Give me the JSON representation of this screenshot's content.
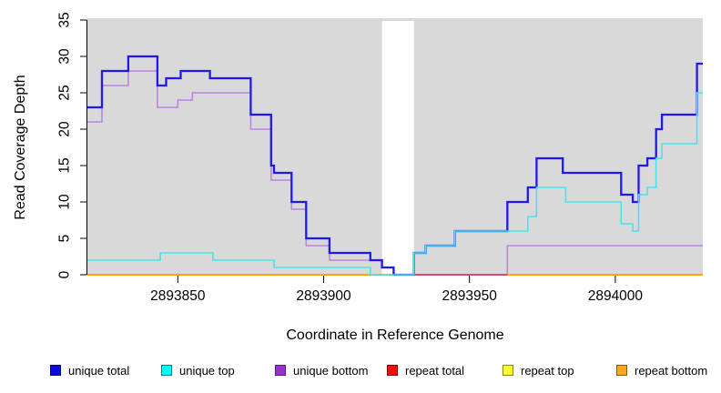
{
  "chart_data": {
    "type": "line",
    "step": true,
    "title": "",
    "xlabel": "Coordinate in Reference Genome",
    "ylabel": "Read Coverage Depth",
    "xlim": [
      2893819,
      2894030
    ],
    "ylim": [
      0,
      35
    ],
    "grid": false,
    "plot_bg": "#d9d9d9",
    "axis_color": "#000000",
    "x_ticks": [
      {
        "value": 2893850,
        "label": "2893850"
      },
      {
        "value": 2893900,
        "label": "2893900"
      },
      {
        "value": 2893950,
        "label": "2893950"
      },
      {
        "value": 2894000,
        "label": "2894000"
      }
    ],
    "y_ticks": [
      {
        "value": 0,
        "label": "0"
      },
      {
        "value": 5,
        "label": "5"
      },
      {
        "value": 10,
        "label": "10"
      },
      {
        "value": 15,
        "label": "15"
      },
      {
        "value": 20,
        "label": "20"
      },
      {
        "value": 25,
        "label": "25"
      },
      {
        "value": 30,
        "label": "30"
      },
      {
        "value": 35,
        "label": "35"
      }
    ],
    "gap_band": {
      "x1": 2893920,
      "x2": 2893931,
      "color": "#ffffff"
    },
    "series": [
      {
        "name": "unique total",
        "color": "#1f1ae8",
        "width": 2.3,
        "points": [
          [
            2893819,
            23
          ],
          [
            2893824,
            28
          ],
          [
            2893833,
            30
          ],
          [
            2893843,
            26
          ],
          [
            2893846,
            27
          ],
          [
            2893851,
            28
          ],
          [
            2893861,
            27
          ],
          [
            2893875,
            22
          ],
          [
            2893882,
            15
          ],
          [
            2893883,
            14
          ],
          [
            2893889,
            10
          ],
          [
            2893894,
            5
          ],
          [
            2893902,
            3
          ],
          [
            2893916,
            2
          ],
          [
            2893920,
            1
          ],
          [
            2893924,
            0
          ],
          [
            2893931,
            3
          ],
          [
            2893935,
            4
          ],
          [
            2893945,
            6
          ],
          [
            2893963,
            10
          ],
          [
            2893970,
            12
          ],
          [
            2893973,
            16
          ],
          [
            2893982,
            14
          ],
          [
            2894002,
            11
          ],
          [
            2894006,
            10
          ],
          [
            2894008,
            15
          ],
          [
            2894011,
            16
          ],
          [
            2894014,
            20
          ],
          [
            2894016,
            22
          ],
          [
            2894028,
            29
          ],
          [
            2894030,
            29
          ]
        ]
      },
      {
        "name": "unique top",
        "color": "#4ce2ea",
        "width": 1.6,
        "points": [
          [
            2893819,
            2
          ],
          [
            2893844,
            3
          ],
          [
            2893862,
            2
          ],
          [
            2893883,
            1
          ],
          [
            2893916,
            0
          ],
          [
            2893931,
            3
          ],
          [
            2893935,
            4
          ],
          [
            2893945,
            6
          ],
          [
            2893970,
            8
          ],
          [
            2893973,
            12
          ],
          [
            2893983,
            10
          ],
          [
            2894002,
            7
          ],
          [
            2894006,
            6
          ],
          [
            2894008,
            11
          ],
          [
            2894011,
            12
          ],
          [
            2894014,
            16
          ],
          [
            2894016,
            18
          ],
          [
            2894028,
            25
          ],
          [
            2894030,
            25
          ]
        ]
      },
      {
        "name": "unique bottom",
        "color": "#bb86dc",
        "width": 1.6,
        "points": [
          [
            2893819,
            21
          ],
          [
            2893824,
            26
          ],
          [
            2893833,
            28
          ],
          [
            2893843,
            23
          ],
          [
            2893850,
            24
          ],
          [
            2893855,
            25
          ],
          [
            2893875,
            20
          ],
          [
            2893882,
            13
          ],
          [
            2893889,
            9
          ],
          [
            2893894,
            4
          ],
          [
            2893902,
            2
          ],
          [
            2893920,
            1
          ],
          [
            2893924,
            0
          ],
          [
            2893963,
            4
          ],
          [
            2894030,
            4
          ]
        ]
      },
      {
        "name": "repeat total",
        "color": "#d6496e",
        "width": 2,
        "points": [
          [
            2893819,
            0
          ],
          [
            2894030,
            0
          ]
        ]
      },
      {
        "name": "repeat top",
        "color": "#ffff00",
        "width": 1.6,
        "points": [
          [
            2893819,
            0
          ],
          [
            2894030,
            0
          ]
        ]
      },
      {
        "name": "repeat bottom",
        "color": "#ffa500",
        "width": 2,
        "points": [
          [
            2893819,
            0
          ],
          [
            2894030,
            0
          ]
        ]
      }
    ],
    "bottom_line_segments": [
      {
        "x1": 2893819,
        "x2": 2893931,
        "color": "#ffa500"
      },
      {
        "x1": 2893931,
        "x2": 2893963,
        "color": "#d6496e"
      },
      {
        "x1": 2893963,
        "x2": 2894030,
        "color": "#ffa500"
      }
    ],
    "draw_order": [
      "unique bottom",
      "bottom_segments",
      "unique total",
      "unique top"
    ],
    "legend": {
      "position": "bottom",
      "items": [
        {
          "label": "unique total",
          "fill": "#0d0ce0",
          "border": "#000080"
        },
        {
          "label": "unique top",
          "fill": "#00ffff",
          "border": "#00818a"
        },
        {
          "label": "unique bottom",
          "fill": "#9932cc",
          "border": "#551a8b"
        },
        {
          "label": "repeat total",
          "fill": "#f50f0f",
          "border": "#8b0000"
        },
        {
          "label": "repeat top",
          "fill": "#fdfd2e",
          "border": "#8a8a00"
        },
        {
          "label": "repeat bottom",
          "fill": "#ffa51f",
          "border": "#8a5a00"
        }
      ]
    }
  }
}
